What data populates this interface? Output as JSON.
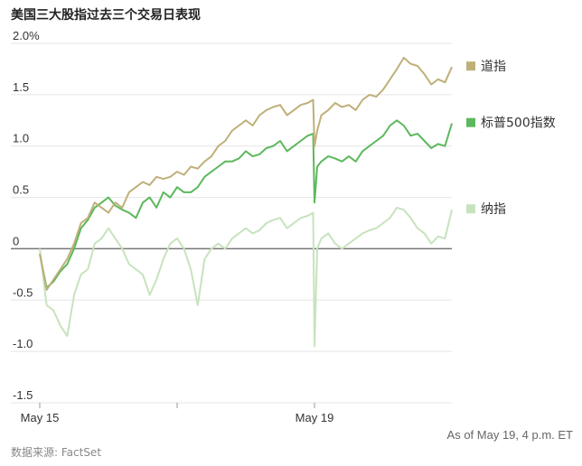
{
  "title": "美国三大股指过去三个交易日表现",
  "footer": {
    "as_of": "As of May 19, 4 p.m. ET",
    "source": "数据来源: FactSet"
  },
  "colors": {
    "dow": "#bfb07a",
    "sp500": "#5cb85c",
    "nasdaq": "#c7e3be",
    "grid": "#e5e5e5",
    "zero_line": "#777777"
  },
  "chart_data": {
    "type": "line",
    "title": "美国三大股指过去三个交易日表现",
    "xlabel": "",
    "ylabel": "",
    "ylim": [
      -1.5,
      2.0
    ],
    "y_ticks": [
      {
        "value": -1.5,
        "label": "-1.5"
      },
      {
        "value": -1.0,
        "label": "-1.0"
      },
      {
        "value": -0.5,
        "label": "-0.5"
      },
      {
        "value": 0,
        "label": "0"
      },
      {
        "value": 0.5,
        "label": "0.5"
      },
      {
        "value": 1.0,
        "label": "1.0"
      },
      {
        "value": 1.5,
        "label": "1.5"
      },
      {
        "value": 2.0,
        "label": "2.0%"
      }
    ],
    "x_range": [
      0,
      3
    ],
    "x_ticks": [
      {
        "value": 0,
        "label": "May 15"
      },
      {
        "value": 1,
        "label": ""
      },
      {
        "value": 2,
        "label": "May 19"
      }
    ],
    "grid": true,
    "legend": "right",
    "series": [
      {
        "name": "道指",
        "color_key": "dow",
        "x": [
          0,
          0.05,
          0.1,
          0.15,
          0.2,
          0.25,
          0.3,
          0.35,
          0.4,
          0.45,
          0.5,
          0.55,
          0.6,
          0.65,
          0.7,
          0.75,
          0.8,
          0.85,
          0.9,
          0.95,
          1.0,
          1.05,
          1.1,
          1.15,
          1.2,
          1.25,
          1.3,
          1.35,
          1.4,
          1.45,
          1.5,
          1.55,
          1.6,
          1.65,
          1.7,
          1.75,
          1.8,
          1.85,
          1.9,
          1.95,
          1.99,
          2.0,
          2.02,
          2.05,
          2.1,
          2.15,
          2.2,
          2.25,
          2.3,
          2.35,
          2.4,
          2.45,
          2.5,
          2.55,
          2.6,
          2.65,
          2.7,
          2.75,
          2.8,
          2.85,
          2.9,
          2.95,
          3.0
        ],
        "values": [
          -0.05,
          -0.4,
          -0.3,
          -0.2,
          -0.1,
          0.05,
          0.25,
          0.3,
          0.45,
          0.4,
          0.35,
          0.45,
          0.4,
          0.55,
          0.6,
          0.65,
          0.62,
          0.7,
          0.68,
          0.7,
          0.75,
          0.72,
          0.8,
          0.78,
          0.85,
          0.9,
          1.0,
          1.05,
          1.15,
          1.2,
          1.25,
          1.2,
          1.3,
          1.35,
          1.38,
          1.4,
          1.3,
          1.35,
          1.4,
          1.42,
          1.45,
          1.0,
          1.15,
          1.3,
          1.35,
          1.42,
          1.38,
          1.4,
          1.35,
          1.45,
          1.5,
          1.48,
          1.55,
          1.65,
          1.75,
          1.86,
          1.8,
          1.78,
          1.7,
          1.6,
          1.65,
          1.62,
          1.77
        ]
      },
      {
        "name": "标普500指数",
        "color_key": "sp500",
        "x": [
          0,
          0.05,
          0.1,
          0.15,
          0.2,
          0.25,
          0.3,
          0.35,
          0.4,
          0.45,
          0.5,
          0.55,
          0.6,
          0.65,
          0.7,
          0.75,
          0.8,
          0.85,
          0.9,
          0.95,
          1.0,
          1.05,
          1.1,
          1.15,
          1.2,
          1.25,
          1.3,
          1.35,
          1.4,
          1.45,
          1.5,
          1.55,
          1.6,
          1.65,
          1.7,
          1.75,
          1.8,
          1.85,
          1.9,
          1.95,
          1.99,
          2.0,
          2.02,
          2.05,
          2.1,
          2.15,
          2.2,
          2.25,
          2.3,
          2.35,
          2.4,
          2.45,
          2.5,
          2.55,
          2.6,
          2.65,
          2.7,
          2.75,
          2.8,
          2.85,
          2.9,
          2.95,
          3.0
        ],
        "values": [
          -0.05,
          -0.38,
          -0.32,
          -0.22,
          -0.15,
          0.0,
          0.2,
          0.28,
          0.4,
          0.45,
          0.5,
          0.42,
          0.38,
          0.35,
          0.3,
          0.45,
          0.5,
          0.4,
          0.55,
          0.5,
          0.6,
          0.55,
          0.55,
          0.6,
          0.7,
          0.75,
          0.8,
          0.85,
          0.85,
          0.88,
          0.95,
          0.9,
          0.92,
          0.98,
          1.0,
          1.05,
          0.95,
          1.0,
          1.05,
          1.1,
          1.12,
          0.45,
          0.8,
          0.85,
          0.9,
          0.88,
          0.85,
          0.9,
          0.85,
          0.95,
          1.0,
          1.05,
          1.1,
          1.2,
          1.25,
          1.2,
          1.1,
          1.12,
          1.05,
          0.98,
          1.02,
          1.0,
          1.22
        ]
      },
      {
        "name": "纳指",
        "color_key": "nasdaq",
        "x": [
          0,
          0.05,
          0.1,
          0.15,
          0.2,
          0.25,
          0.3,
          0.35,
          0.4,
          0.45,
          0.5,
          0.55,
          0.6,
          0.65,
          0.7,
          0.75,
          0.8,
          0.85,
          0.9,
          0.95,
          1.0,
          1.05,
          1.1,
          1.15,
          1.2,
          1.25,
          1.3,
          1.35,
          1.4,
          1.45,
          1.5,
          1.55,
          1.6,
          1.65,
          1.7,
          1.75,
          1.8,
          1.85,
          1.9,
          1.95,
          1.99,
          2.0,
          2.02,
          2.05,
          2.1,
          2.15,
          2.2,
          2.25,
          2.3,
          2.35,
          2.4,
          2.45,
          2.5,
          2.55,
          2.6,
          2.65,
          2.7,
          2.75,
          2.8,
          2.85,
          2.9,
          2.95,
          3.0
        ],
        "values": [
          0.0,
          -0.55,
          -0.6,
          -0.75,
          -0.85,
          -0.45,
          -0.25,
          -0.2,
          0.05,
          0.1,
          0.2,
          0.1,
          0.0,
          -0.15,
          -0.2,
          -0.25,
          -0.45,
          -0.3,
          -0.1,
          0.05,
          0.1,
          0.0,
          -0.2,
          -0.55,
          -0.1,
          0.0,
          0.05,
          0.0,
          0.1,
          0.15,
          0.2,
          0.15,
          0.18,
          0.25,
          0.28,
          0.3,
          0.2,
          0.25,
          0.3,
          0.32,
          0.35,
          -0.95,
          0.0,
          0.1,
          0.15,
          0.05,
          0.0,
          0.05,
          0.1,
          0.15,
          0.18,
          0.2,
          0.25,
          0.3,
          0.4,
          0.38,
          0.3,
          0.2,
          0.15,
          0.05,
          0.12,
          0.1,
          0.38
        ]
      }
    ]
  }
}
